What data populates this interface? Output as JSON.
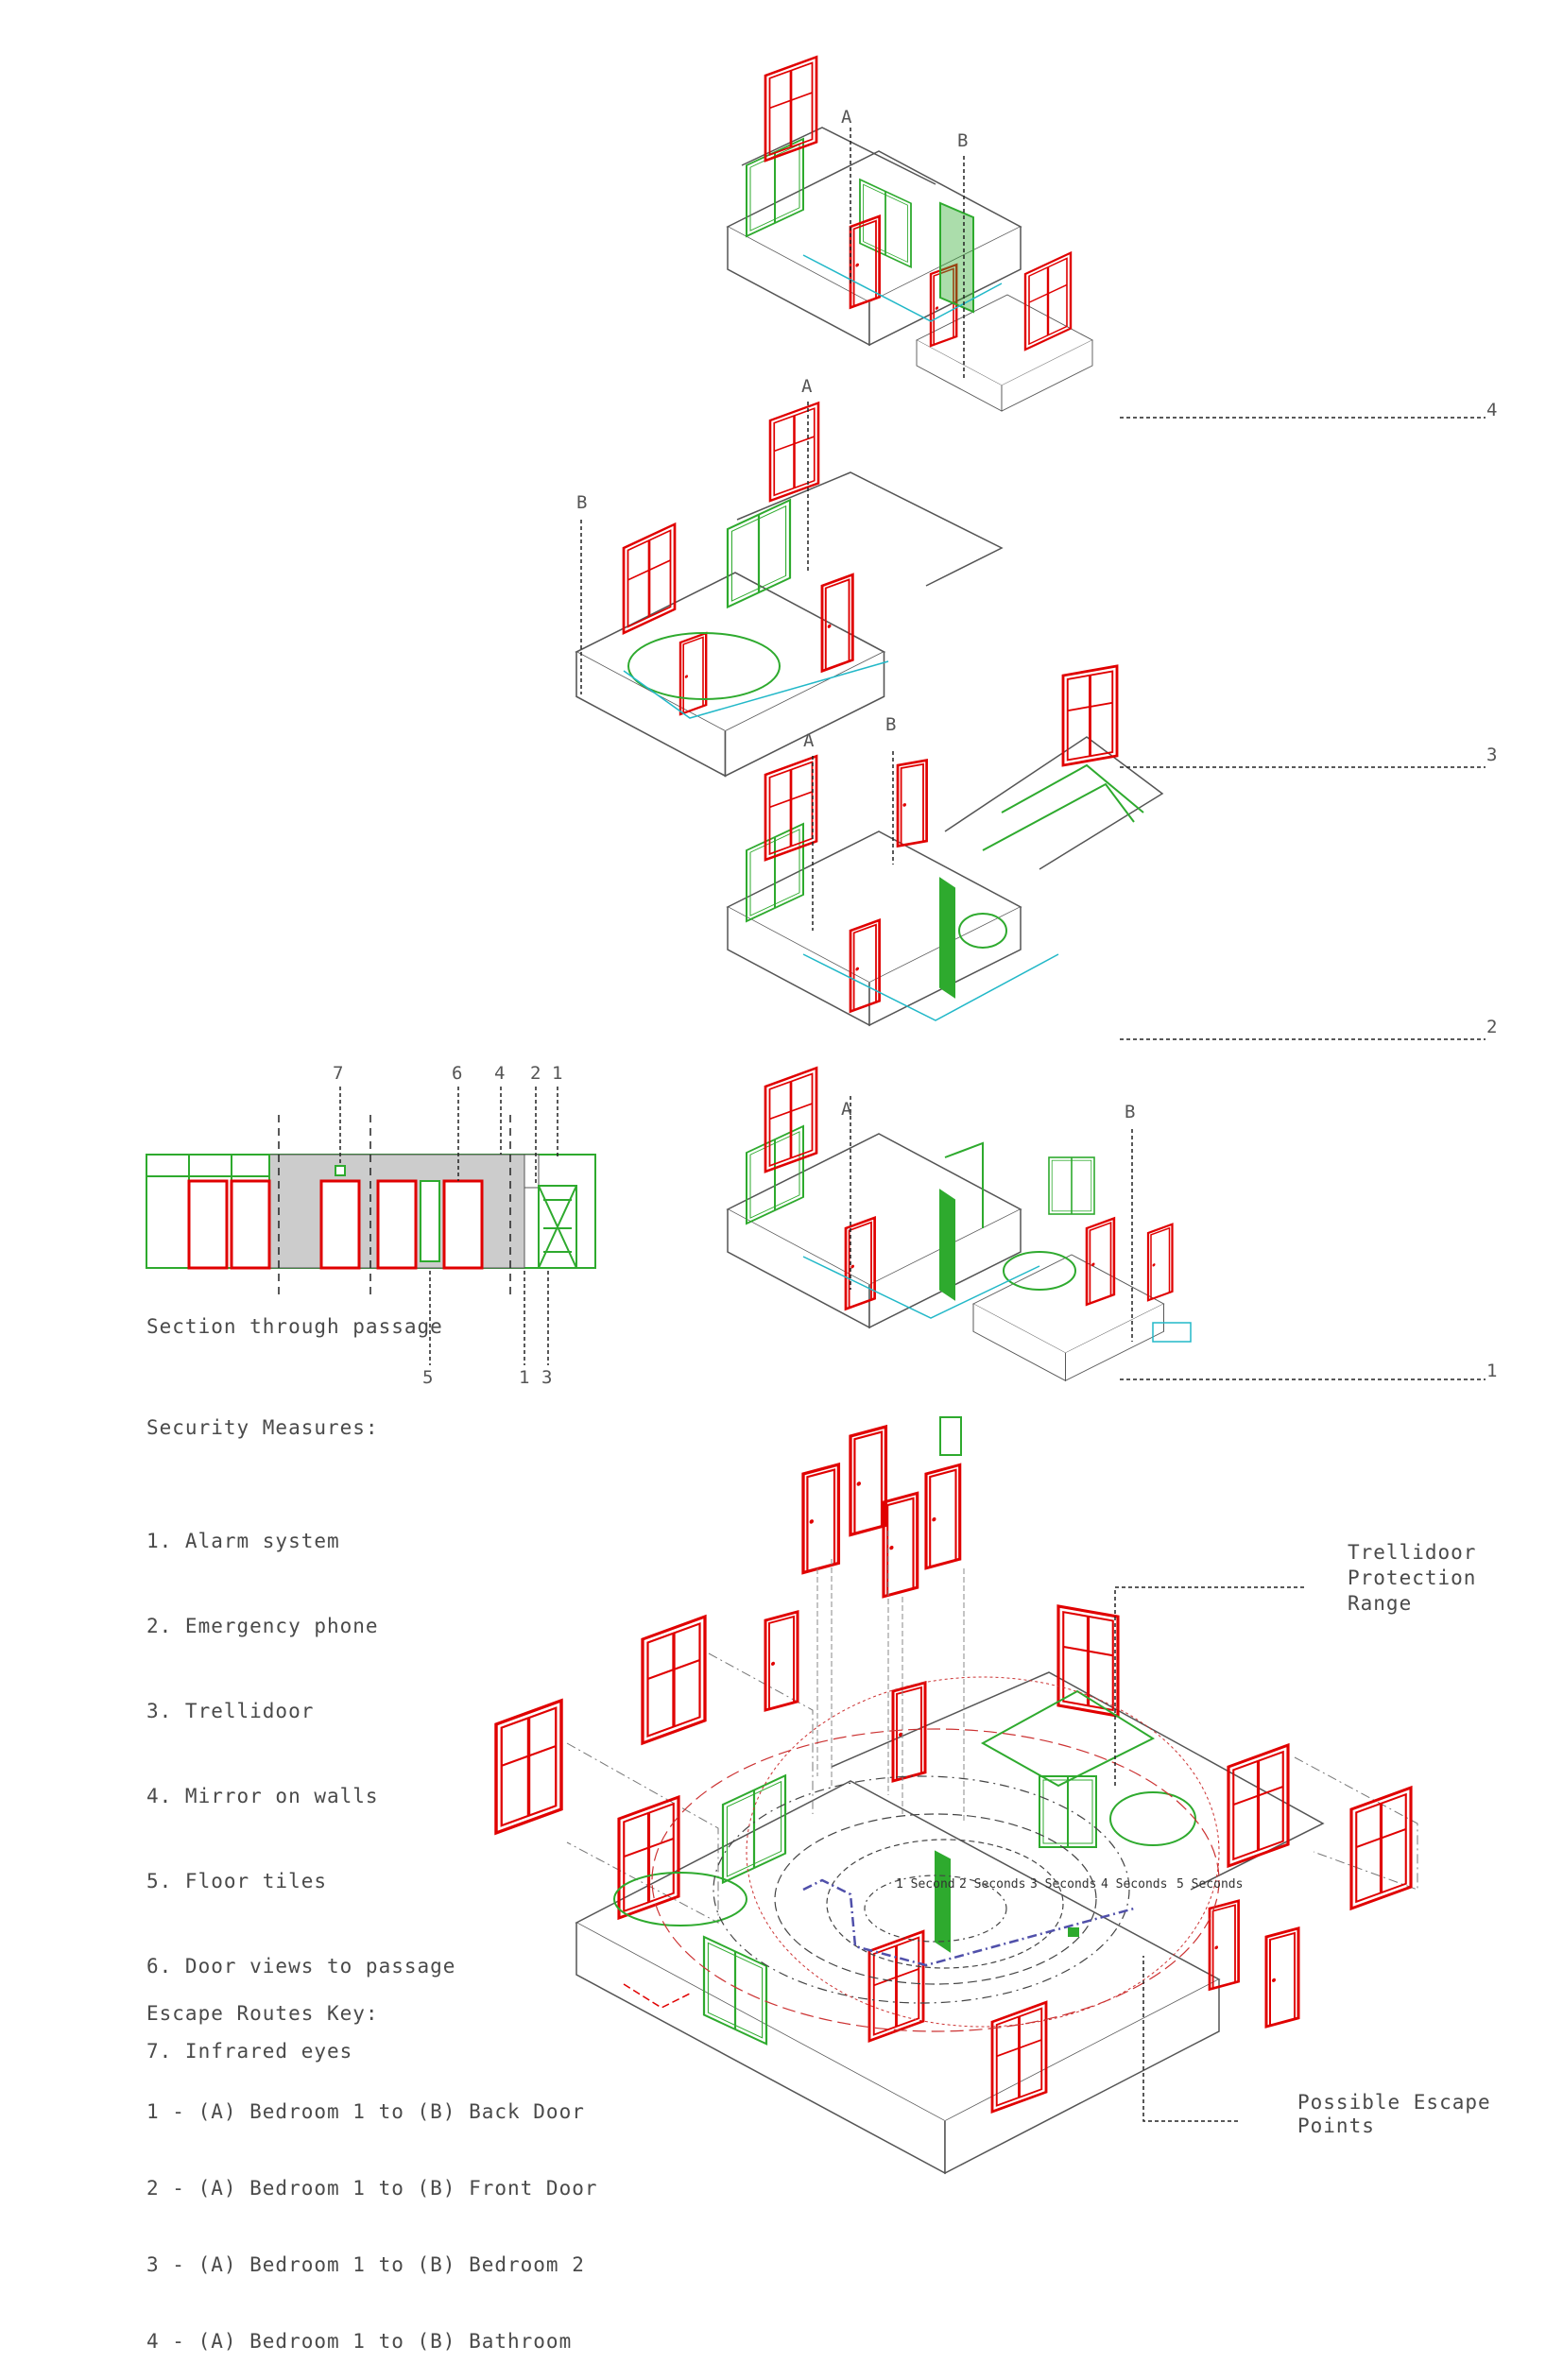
{
  "section": {
    "title": "Section through passage",
    "top_labels": [
      "7",
      "6",
      "4",
      "2",
      "1"
    ],
    "bottom_labels": [
      "5",
      "1",
      "3"
    ]
  },
  "security": {
    "heading": "Security Measures:",
    "items": [
      "1. Alarm system",
      "2. Emergency phone",
      "3. Trellidoor",
      "4. Mirror on walls",
      "5. Floor tiles",
      "6. Door views to passage",
      "7. Infrared eyes"
    ]
  },
  "escape": {
    "heading": "Escape Routes Key:",
    "items": [
      "1 - (A) Bedroom 1 to (B) Back Door",
      "2 - (A) Bedroom 1 to (B) Front Door",
      "3 - (A) Bedroom 1 to (B) Bedroom 2",
      "4 - (A) Bedroom 1 to (B) Bathroom"
    ]
  },
  "levels": [
    {
      "number": "4",
      "a": "A",
      "b": "B"
    },
    {
      "number": "3",
      "a": "A",
      "b": "B"
    },
    {
      "number": "2",
      "a": "A",
      "b": "B"
    },
    {
      "number": "1",
      "a": "A",
      "b": "B"
    }
  ],
  "annotations": {
    "trellidoor": "Trellidoor\nProtection\nRange",
    "escape_points": "Possible Escape\nPoints",
    "time_rings": [
      "1 Second",
      "2 Seconds",
      "3 Seconds",
      "4 Seconds",
      "5 Seconds"
    ]
  },
  "colors": {
    "wall": "#555555",
    "furniture": "#2eaa2e",
    "window": "#e00000",
    "route": "#22b8c8",
    "dash": "#222222"
  }
}
